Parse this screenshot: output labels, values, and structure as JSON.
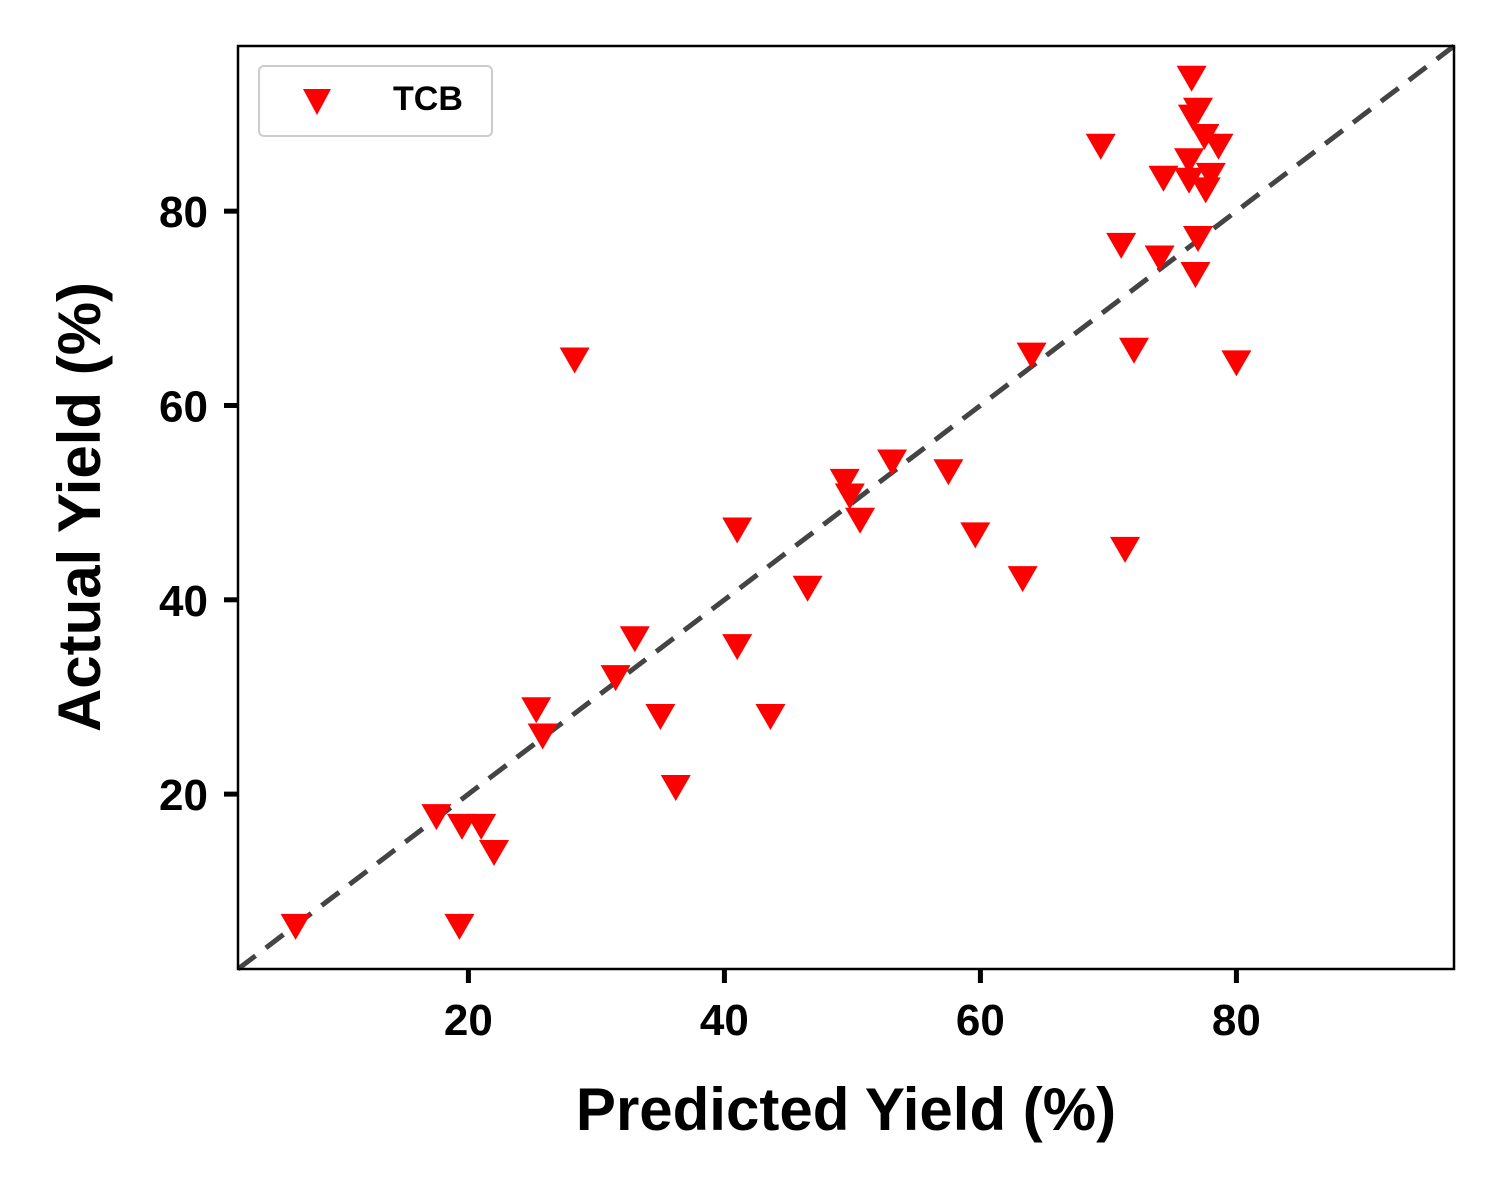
{
  "chart_data": {
    "type": "scatter",
    "xlabel": "Predicted Yield (%)",
    "ylabel": "Actual Yield (%)",
    "xlim": [
      2,
      97
    ],
    "ylim": [
      2,
      97
    ],
    "xticks": [
      20,
      40,
      60,
      80
    ],
    "yticks": [
      20,
      40,
      60,
      80
    ],
    "grid": false,
    "legend_position": "top-left",
    "reference_line": {
      "style": "dashed",
      "from": [
        2,
        2
      ],
      "to": [
        97,
        97
      ],
      "color": "#444444"
    },
    "series": [
      {
        "name": "TCB",
        "marker": "triangle-down",
        "color": "#ff0000",
        "points": [
          [
            6.5,
            6.2
          ],
          [
            19.3,
            6.2
          ],
          [
            17.5,
            17.5
          ],
          [
            19.5,
            16.5
          ],
          [
            21.0,
            16.5
          ],
          [
            22.0,
            13.8
          ],
          [
            25.3,
            28.5
          ],
          [
            25.8,
            25.8
          ],
          [
            28.3,
            64.5
          ],
          [
            31.5,
            31.8
          ],
          [
            33.0,
            35.8
          ],
          [
            35.0,
            27.8
          ],
          [
            36.2,
            20.5
          ],
          [
            41.0,
            47.0
          ],
          [
            41.0,
            35.0
          ],
          [
            43.6,
            27.8
          ],
          [
            46.5,
            41.0
          ],
          [
            49.4,
            52.0
          ],
          [
            49.8,
            50.5
          ],
          [
            50.6,
            48.0
          ],
          [
            53.1,
            54.0
          ],
          [
            57.5,
            53.0
          ],
          [
            59.6,
            46.5
          ],
          [
            63.3,
            42.0
          ],
          [
            64.0,
            65.0
          ],
          [
            69.4,
            86.5
          ],
          [
            71.0,
            76.3
          ],
          [
            71.3,
            45.0
          ],
          [
            72.0,
            65.5
          ],
          [
            74.0,
            75.0
          ],
          [
            74.3,
            83.2
          ],
          [
            76.3,
            83.0
          ],
          [
            76.3,
            85.0
          ],
          [
            76.5,
            93.5
          ],
          [
            76.6,
            89.5
          ],
          [
            76.8,
            73.3
          ],
          [
            77.0,
            77.0
          ],
          [
            77.0,
            90.2
          ],
          [
            77.5,
            87.5
          ],
          [
            77.6,
            82.0
          ],
          [
            78.0,
            83.5
          ],
          [
            78.6,
            86.5
          ],
          [
            80.0,
            64.2
          ]
        ]
      }
    ]
  }
}
